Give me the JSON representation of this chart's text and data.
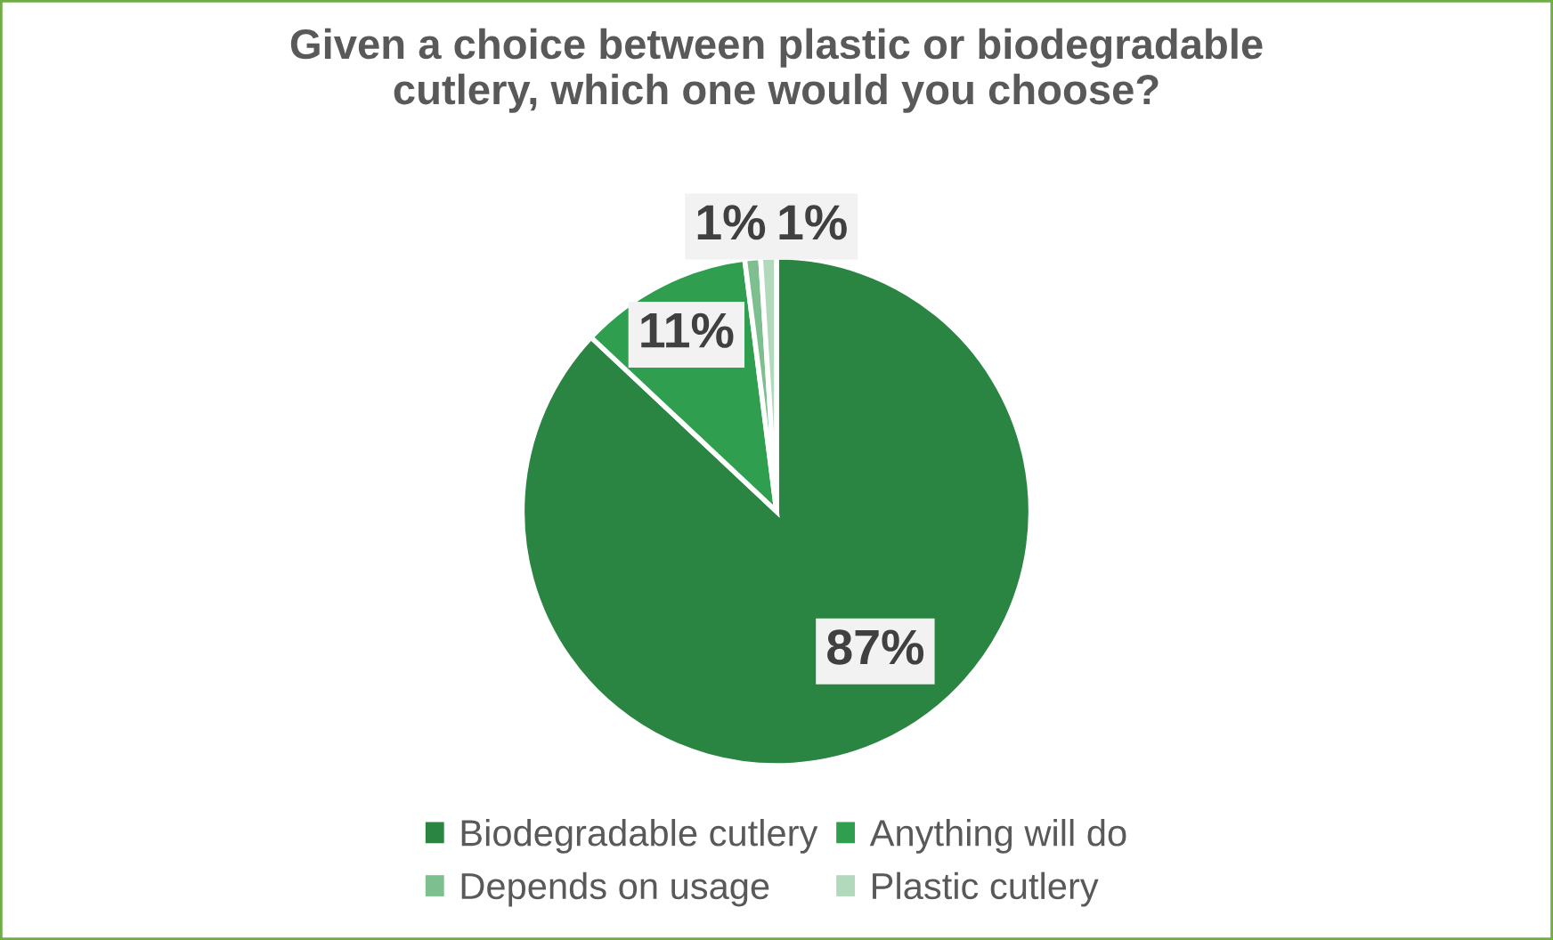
{
  "chart_data": {
    "type": "pie",
    "title": "Given a choice between plastic or biodegradable\ncutlery, which one would you choose?",
    "categories": [
      "Biodegradable cutlery",
      "Anything will do",
      "Depends on usage",
      "Plastic cutlery"
    ],
    "values": [
      87,
      11,
      1,
      1
    ],
    "colors": [
      "#2a8442",
      "#2f9e4f",
      "#7dbf8e",
      "#b3d9bc"
    ],
    "value_labels": [
      "87%",
      "11%",
      "1%",
      "1%"
    ],
    "legend": "bottom"
  }
}
